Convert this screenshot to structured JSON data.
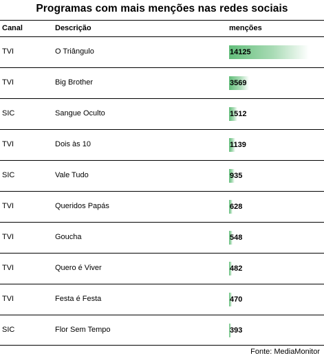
{
  "title": "Programas com mais menções nas redes sociais",
  "columns": {
    "canal": "Canal",
    "descricao": "Descrição",
    "mencoes": "menções"
  },
  "source": "Fonte:  MediaMonitor",
  "colors": {
    "bar_start": "#63be7b",
    "bar_end": "#ffffff",
    "rule": "#000000"
  },
  "chart_data": {
    "type": "table",
    "title": "Programas com mais menções nas redes sociais",
    "columns": [
      "Canal",
      "Descrição",
      "menções"
    ],
    "max_value": 14125,
    "rows": [
      {
        "canal": "TVI",
        "descricao": "O Triângulo",
        "mencoes": 14125
      },
      {
        "canal": "TVI",
        "descricao": "Big Brother",
        "mencoes": 3569
      },
      {
        "canal": "SIC",
        "descricao": "Sangue Oculto",
        "mencoes": 1512
      },
      {
        "canal": "TVI",
        "descricao": "Dois às 10",
        "mencoes": 1139
      },
      {
        "canal": "SIC",
        "descricao": "Vale Tudo",
        "mencoes": 935
      },
      {
        "canal": "TVI",
        "descricao": "Queridos Papás",
        "mencoes": 628
      },
      {
        "canal": "TVI",
        "descricao": "Goucha",
        "mencoes": 548
      },
      {
        "canal": "TVI",
        "descricao": "Quero é Viver",
        "mencoes": 482
      },
      {
        "canal": "TVI",
        "descricao": "Festa é Festa",
        "mencoes": 470
      },
      {
        "canal": "SIC",
        "descricao": "Flor Sem Tempo",
        "mencoes": 393
      }
    ]
  }
}
